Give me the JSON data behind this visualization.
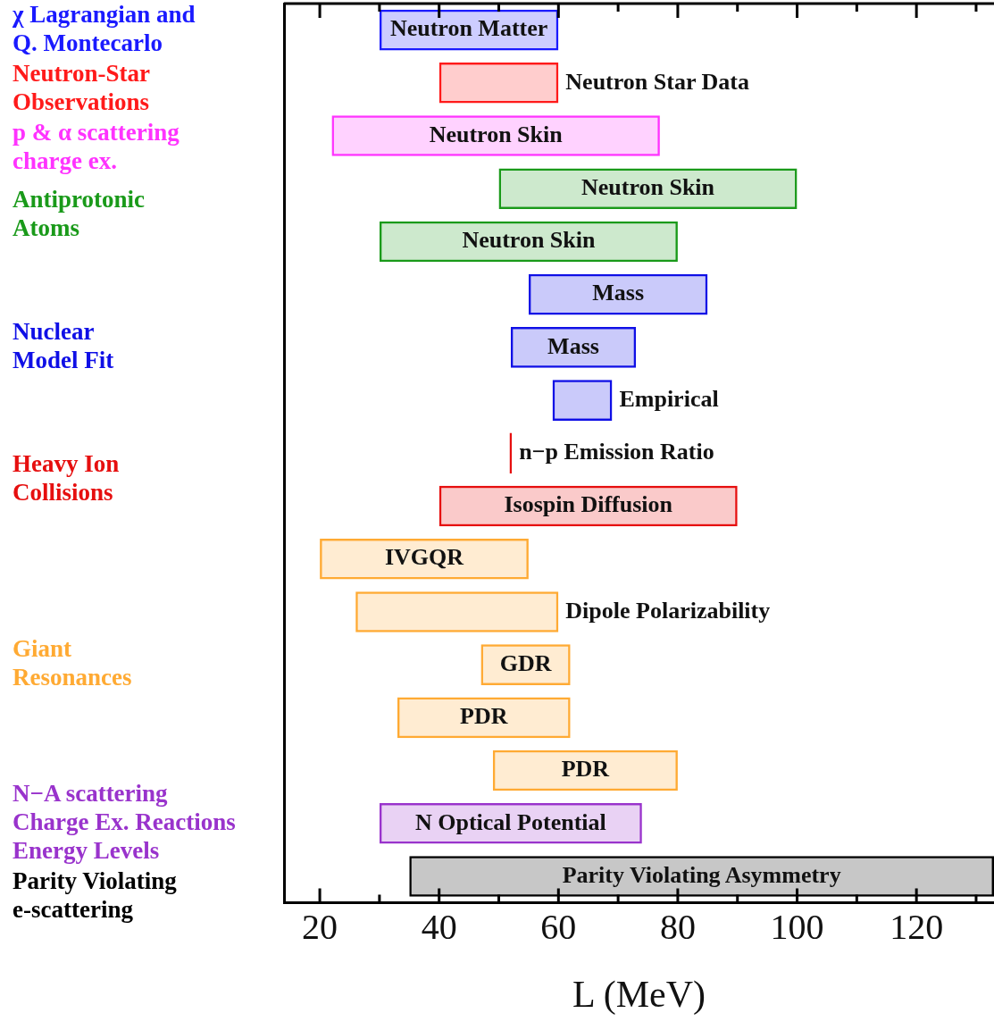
{
  "chart_data": {
    "type": "bar",
    "orientation": "horizontal",
    "xlabel": "L (MeV)",
    "tick_labels": "x",
    "categories": [
      "Neutron Matter",
      "Neutron Star Data",
      "Neutron Skin",
      "Neutron Skin",
      "Neutron Skin",
      "Mass",
      "Mass",
      "Empirical",
      "n−p Emission Ratio",
      "Isospin Diffusion",
      "IVGQR",
      "Dipole Polarizability",
      "GDR",
      "PDR",
      "PDR",
      "N Optical Potential",
      "Parity Violating Asymmetry"
    ],
    "series": [
      {
        "name": "χ Lagrangian and\nQ. Montecarlo",
        "color": "#1a1aff",
        "values": [
          30,
          null,
          null,
          null,
          null,
          null,
          null,
          null,
          null,
          null,
          null,
          null,
          null,
          null,
          null,
          null,
          null
        ],
        "base": [
          30,
          null,
          null,
          null,
          null,
          null,
          null,
          null,
          null,
          null,
          null,
          null,
          null,
          null,
          null,
          null,
          null
        ]
      },
      {
        "name": "Neutron-Star\nObservations",
        "color": "#ff1a1a",
        "values": [
          null,
          20,
          null,
          null,
          null,
          null,
          null,
          null,
          null,
          null,
          null,
          null,
          null,
          null,
          null,
          null,
          null
        ],
        "base": [
          null,
          40,
          null,
          null,
          null,
          null,
          null,
          null,
          null,
          null,
          null,
          null,
          null,
          null,
          null,
          null,
          null
        ]
      },
      {
        "name": "p & α scattering\ncharge ex.",
        "color": "#ff33ff",
        "values": [
          null,
          null,
          55,
          null,
          null,
          null,
          null,
          null,
          null,
          null,
          null,
          null,
          null,
          null,
          null,
          null,
          null
        ],
        "base": [
          null,
          null,
          22,
          null,
          null,
          null,
          null,
          null,
          null,
          null,
          null,
          null,
          null,
          null,
          null,
          null,
          null
        ]
      },
      {
        "name": "Antiprotonic\nAtoms",
        "color": "#1a9a1a",
        "values": [
          null,
          null,
          null,
          50,
          50,
          null,
          null,
          null,
          null,
          null,
          null,
          null,
          null,
          null,
          null,
          null,
          null
        ],
        "base": [
          null,
          null,
          null,
          50,
          30,
          null,
          null,
          null,
          null,
          null,
          null,
          null,
          null,
          null,
          null,
          null,
          null
        ]
      },
      {
        "name": "Nuclear\nModel Fit",
        "color": "#0f0fe6",
        "values": [
          null,
          null,
          null,
          null,
          null,
          30,
          21,
          10,
          null,
          null,
          null,
          null,
          null,
          null,
          null,
          null,
          null
        ],
        "base": [
          null,
          null,
          null,
          null,
          null,
          55,
          52,
          59,
          null,
          null,
          null,
          null,
          null,
          null,
          null,
          null,
          null
        ]
      },
      {
        "name": "Heavy Ion\nCollisions",
        "color": "#e60f0f",
        "values": [
          null,
          null,
          null,
          null,
          null,
          null,
          null,
          null,
          0.4,
          50,
          null,
          null,
          null,
          null,
          null,
          null,
          null
        ],
        "base": [
          null,
          null,
          null,
          null,
          null,
          null,
          null,
          null,
          51.8,
          40,
          null,
          null,
          null,
          null,
          null,
          null,
          null
        ]
      },
      {
        "name": "Giant\nResonances",
        "color": "#ffaa33",
        "values": [
          null,
          null,
          null,
          null,
          null,
          null,
          null,
          null,
          null,
          null,
          35,
          34,
          15,
          29,
          31,
          null,
          null
        ],
        "base": [
          null,
          null,
          null,
          null,
          null,
          null,
          null,
          null,
          null,
          null,
          20,
          26,
          47,
          33,
          49,
          null,
          null
        ]
      },
      {
        "name": "N−A scattering\nCharge Ex. Reactions\nEnergy Levels",
        "color": "#9933cc",
        "values": [
          null,
          null,
          null,
          null,
          null,
          null,
          null,
          null,
          null,
          null,
          null,
          null,
          null,
          null,
          null,
          44,
          null
        ],
        "base": [
          null,
          null,
          null,
          null,
          null,
          null,
          null,
          null,
          null,
          null,
          null,
          null,
          null,
          null,
          null,
          30,
          null
        ]
      },
      {
        "name": "Parity Violating\ne-scattering",
        "color": "#000000",
        "values": [
          null,
          null,
          null,
          null,
          null,
          null,
          null,
          null,
          null,
          null,
          null,
          null,
          null,
          null,
          null,
          null,
          98
        ],
        "base": [
          null,
          null,
          null,
          null,
          null,
          null,
          null,
          null,
          null,
          null,
          null,
          null,
          null,
          null,
          null,
          null,
          35
        ]
      }
    ],
    "xlim": [
      14,
      133
    ],
    "xticks": [
      20,
      {
        "value": 30,
        "label": null
      },
      40,
      {
        "value": 50,
        "label": null
      },
      60,
      {
        "value": 70,
        "label": null
      },
      80,
      {
        "value": 90,
        "label": null
      },
      100,
      {
        "value": 110,
        "label": null
      },
      120,
      {
        "value": 130,
        "label": null
      }
    ]
  }
}
